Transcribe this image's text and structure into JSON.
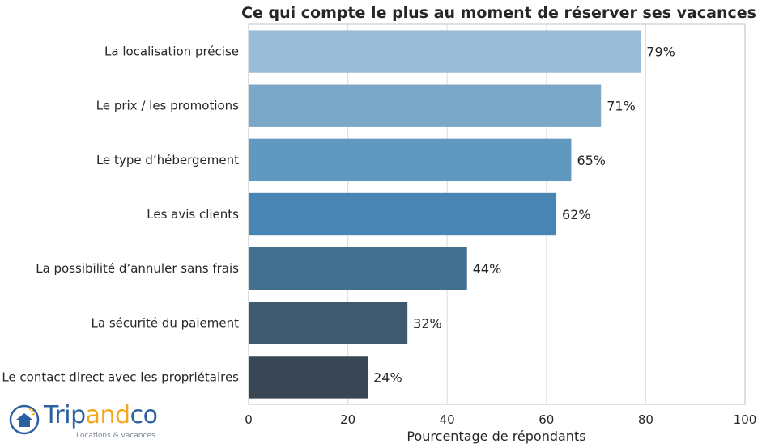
{
  "chart_data": {
    "type": "bar",
    "orientation": "horizontal",
    "title": "Ce qui compte le plus au moment de réserver ses vacances",
    "xlabel": "Pourcentage de répondants",
    "ylabel": "",
    "xlim": [
      0,
      100
    ],
    "xticks": [
      0,
      20,
      40,
      60,
      80,
      100
    ],
    "grid": true,
    "categories": [
      "La localisation précise",
      "Le prix / les promotions",
      "Le type d’hébergement",
      "Les avis clients",
      "La possibilité d’annuler sans frais",
      "La sécurité du paiement",
      "Le contact direct avec les propriétaires"
    ],
    "values": [
      79,
      71,
      65,
      62,
      44,
      32,
      24
    ],
    "value_labels": [
      "79%",
      "71%",
      "65%",
      "62%",
      "44%",
      "32%",
      "24%"
    ],
    "colors": [
      "#9abcd8",
      "#7ca8c8",
      "#6198bf",
      "#4885b3",
      "#42708f",
      "#3d5a6f",
      "#394754"
    ]
  },
  "logo": {
    "part1": "Trip",
    "part2": "and",
    "part3": "co",
    "tagline": "Locations & vacances"
  }
}
